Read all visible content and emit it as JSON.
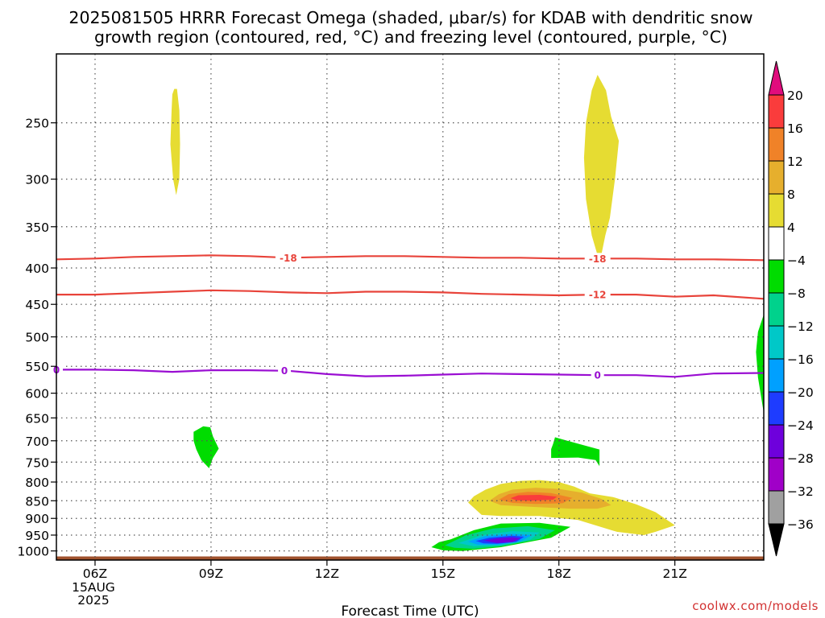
{
  "chart_data": {
    "type": "heatmap",
    "title_lines": [
      "2025081505 HRRR Forecast Omega (shaded, μbar/s) for KDAB with dendritic snow",
      "growth region (contoured, red, °C) and freezing level (contoured, purple, °C)"
    ],
    "xlabel": "Forecast Time (UTC)",
    "credit": "coolwx.com/models",
    "x_ticks": [
      "06Z",
      "09Z",
      "12Z",
      "15Z",
      "18Z",
      "21Z"
    ],
    "x_hours": [
      6,
      9,
      12,
      15,
      18,
      21
    ],
    "x_date_lines": [
      "15AUG",
      "2025"
    ],
    "xlim_hours": [
      5,
      23.3
    ],
    "y_ticks": [
      250,
      300,
      350,
      400,
      450,
      500,
      550,
      600,
      650,
      700,
      750,
      800,
      850,
      900,
      950,
      1000
    ],
    "ylim_hpa": [
      200,
      1030
    ],
    "y_scale": "log-pressure (inverted)",
    "grid": true,
    "colorbar": {
      "levels": [
        -36,
        -32,
        -28,
        -24,
        -20,
        -16,
        -12,
        -8,
        -4,
        4,
        8,
        12,
        16,
        20
      ],
      "colors": [
        "#000000",
        "#a0a0a0",
        "#a000c8",
        "#6e00dc",
        "#1e3cff",
        "#00a0ff",
        "#00c8c8",
        "#00d28c",
        "#00dc00",
        "#ffffff",
        "#e6dc32",
        "#e6af2d",
        "#f08228",
        "#fa3c3c",
        "#e10c7d"
      ]
    },
    "contours": [
      {
        "label": "-18",
        "color": "#e8433a",
        "points": [
          [
            5,
            389
          ],
          [
            6,
            388
          ],
          [
            7,
            386
          ],
          [
            8,
            385
          ],
          [
            9,
            384
          ],
          [
            10,
            385
          ],
          [
            11,
            387
          ],
          [
            12,
            386
          ],
          [
            13,
            385
          ],
          [
            14,
            385
          ],
          [
            15,
            386
          ],
          [
            16,
            387
          ],
          [
            17,
            387
          ],
          [
            18,
            388
          ],
          [
            19,
            388
          ],
          [
            20,
            388
          ],
          [
            21,
            389
          ],
          [
            22,
            389
          ],
          [
            23.3,
            390
          ]
        ],
        "label_hours": [
          11,
          19
        ]
      },
      {
        "label": "-12",
        "color": "#e8433a",
        "points": [
          [
            5,
            436
          ],
          [
            6,
            436
          ],
          [
            7,
            434
          ],
          [
            8,
            432
          ],
          [
            9,
            430
          ],
          [
            10,
            431
          ],
          [
            11,
            433
          ],
          [
            12,
            434
          ],
          [
            13,
            432
          ],
          [
            14,
            432
          ],
          [
            15,
            433
          ],
          [
            16,
            435
          ],
          [
            17,
            436
          ],
          [
            18,
            437
          ],
          [
            19,
            436
          ],
          [
            20,
            436
          ],
          [
            21,
            439
          ],
          [
            22,
            437
          ],
          [
            23.3,
            442
          ]
        ],
        "label_hours": [
          19
        ]
      },
      {
        "label": "0",
        "color": "#9a0ed2",
        "points": [
          [
            5,
            556
          ],
          [
            6,
            556
          ],
          [
            7,
            557
          ],
          [
            8,
            560
          ],
          [
            9,
            557
          ],
          [
            10,
            557
          ],
          [
            11,
            558
          ],
          [
            12,
            564
          ],
          [
            13,
            568
          ],
          [
            14,
            567
          ],
          [
            15,
            565
          ],
          [
            16,
            563
          ],
          [
            17,
            564
          ],
          [
            18,
            565
          ],
          [
            19,
            566
          ],
          [
            20,
            566
          ],
          [
            21,
            569
          ],
          [
            22,
            563
          ],
          [
            23.3,
            562
          ]
        ],
        "label_hours": [
          5,
          10.9,
          19
        ]
      }
    ],
    "omega_regions": [
      {
        "value": 4,
        "color": "#e6dc32",
        "points": [
          [
            8.0,
            228
          ],
          [
            8.05,
            224
          ],
          [
            8.12,
            224
          ],
          [
            8.18,
            240
          ],
          [
            8.2,
            268
          ],
          [
            8.18,
            300
          ],
          [
            8.1,
            316
          ],
          [
            8.02,
            300
          ],
          [
            7.95,
            268
          ],
          [
            7.98,
            240
          ]
        ]
      },
      {
        "value": 4,
        "color": "#e6dc32",
        "points": [
          [
            19.0,
            214
          ],
          [
            19.22,
            225
          ],
          [
            19.35,
            245
          ],
          [
            19.55,
            265
          ],
          [
            19.45,
            300
          ],
          [
            19.32,
            340
          ],
          [
            19.2,
            360
          ],
          [
            19.1,
            383
          ],
          [
            19.0,
            384
          ],
          [
            18.85,
            360
          ],
          [
            18.7,
            320
          ],
          [
            18.65,
            280
          ],
          [
            18.7,
            250
          ],
          [
            18.85,
            225
          ]
        ]
      },
      {
        "value": -4,
        "color": "#00dc00",
        "points": [
          [
            23.3,
            465
          ],
          [
            23.15,
            492
          ],
          [
            23.1,
            525
          ],
          [
            23.15,
            570
          ],
          [
            23.3,
            640
          ]
        ]
      },
      {
        "value": -4,
        "color": "#00dc00",
        "points": [
          [
            8.55,
            680
          ],
          [
            8.8,
            668
          ],
          [
            8.98,
            670
          ],
          [
            9.05,
            690
          ],
          [
            9.2,
            718
          ],
          [
            9.05,
            740
          ],
          [
            8.95,
            765
          ],
          [
            8.75,
            745
          ],
          [
            8.62,
            720
          ],
          [
            8.55,
            700
          ]
        ]
      },
      {
        "value": -4,
        "color": "#00dc00",
        "points": [
          [
            17.8,
            719
          ],
          [
            17.85,
            707
          ],
          [
            17.9,
            692
          ],
          [
            18.1,
            697
          ],
          [
            18.6,
            709
          ],
          [
            19.05,
            720
          ],
          [
            19.05,
            760
          ],
          [
            18.95,
            745
          ],
          [
            18.5,
            739
          ],
          [
            17.8,
            740
          ]
        ]
      },
      {
        "value": 4,
        "color": "#e6dc32",
        "points": [
          [
            15.65,
            855
          ],
          [
            15.8,
            838
          ],
          [
            16.1,
            820
          ],
          [
            16.5,
            805
          ],
          [
            17.0,
            797
          ],
          [
            17.5,
            795
          ],
          [
            18.0,
            800
          ],
          [
            18.4,
            812
          ],
          [
            18.8,
            830
          ],
          [
            19.4,
            840
          ],
          [
            20.0,
            860
          ],
          [
            20.5,
            882
          ],
          [
            21.0,
            920
          ],
          [
            20.5,
            940
          ],
          [
            20.2,
            950
          ],
          [
            19.5,
            940
          ],
          [
            18.5,
            905
          ],
          [
            17.5,
            893
          ],
          [
            16.5,
            893
          ],
          [
            16.0,
            890
          ]
        ]
      },
      {
        "value": 8,
        "color": "#e6af2d",
        "points": [
          [
            16.2,
            850
          ],
          [
            16.45,
            832
          ],
          [
            16.8,
            820
          ],
          [
            17.4,
            815
          ],
          [
            18.0,
            818
          ],
          [
            18.6,
            828
          ],
          [
            19.1,
            845
          ],
          [
            19.35,
            862
          ],
          [
            19.0,
            872
          ],
          [
            18.3,
            872
          ],
          [
            17.3,
            867
          ],
          [
            16.5,
            862
          ]
        ]
      },
      {
        "value": 12,
        "color": "#f08228",
        "points": [
          [
            16.45,
            847
          ],
          [
            16.7,
            832
          ],
          [
            17.2,
            826
          ],
          [
            17.8,
            829
          ],
          [
            18.35,
            842
          ],
          [
            18.1,
            857
          ],
          [
            17.4,
            859
          ],
          [
            16.8,
            856
          ]
        ]
      },
      {
        "value": 16,
        "color": "#fa3c3c",
        "points": [
          [
            16.75,
            843
          ],
          [
            16.95,
            835
          ],
          [
            17.5,
            834
          ],
          [
            17.95,
            839
          ],
          [
            17.85,
            847
          ],
          [
            17.3,
            850
          ],
          [
            16.9,
            849
          ]
        ]
      },
      {
        "value": -4,
        "color": "#00dc00",
        "points": [
          [
            14.7,
            988
          ],
          [
            14.9,
            972
          ],
          [
            15.2,
            963
          ],
          [
            15.8,
            935
          ],
          [
            16.5,
            915
          ],
          [
            17.5,
            913
          ],
          [
            18.3,
            925
          ],
          [
            17.8,
            958
          ],
          [
            16.5,
            988
          ],
          [
            15.5,
            1000
          ],
          [
            15.0,
            998
          ]
        ]
      },
      {
        "value": -8,
        "color": "#00d28c",
        "points": [
          [
            15.05,
            982
          ],
          [
            15.6,
            950
          ],
          [
            16.3,
            930
          ],
          [
            17.2,
            923
          ],
          [
            17.9,
            935
          ],
          [
            17.5,
            962
          ],
          [
            16.5,
            985
          ],
          [
            15.8,
            993
          ],
          [
            15.3,
            990
          ]
        ]
      },
      {
        "value": -12,
        "color": "#00c8c8",
        "points": [
          [
            15.4,
            975
          ],
          [
            16.0,
            950
          ],
          [
            16.8,
            938
          ],
          [
            17.5,
            942
          ],
          [
            17.25,
            965
          ],
          [
            16.5,
            982
          ],
          [
            15.8,
            985
          ]
        ]
      },
      {
        "value": -16,
        "color": "#00a0ff",
        "points": [
          [
            15.65,
            970
          ],
          [
            16.1,
            953
          ],
          [
            16.8,
            946
          ],
          [
            17.3,
            950
          ],
          [
            17.0,
            970
          ],
          [
            16.4,
            980
          ],
          [
            15.9,
            980
          ]
        ]
      },
      {
        "value": -20,
        "color": "#1e3cff",
        "points": [
          [
            15.85,
            968
          ],
          [
            16.2,
            958
          ],
          [
            16.8,
            952
          ],
          [
            17.1,
            955
          ],
          [
            16.9,
            971
          ],
          [
            16.4,
            977
          ],
          [
            16.05,
            976
          ]
        ]
      },
      {
        "value": -24,
        "color": "#6e00dc",
        "points": [
          [
            16.05,
            967
          ],
          [
            16.4,
            960
          ],
          [
            16.8,
            957
          ],
          [
            17.0,
            960
          ],
          [
            16.8,
            972
          ],
          [
            16.4,
            975
          ]
        ]
      }
    ],
    "terrain": {
      "color": "#a0522d",
      "top_hpa": 1018
    }
  }
}
